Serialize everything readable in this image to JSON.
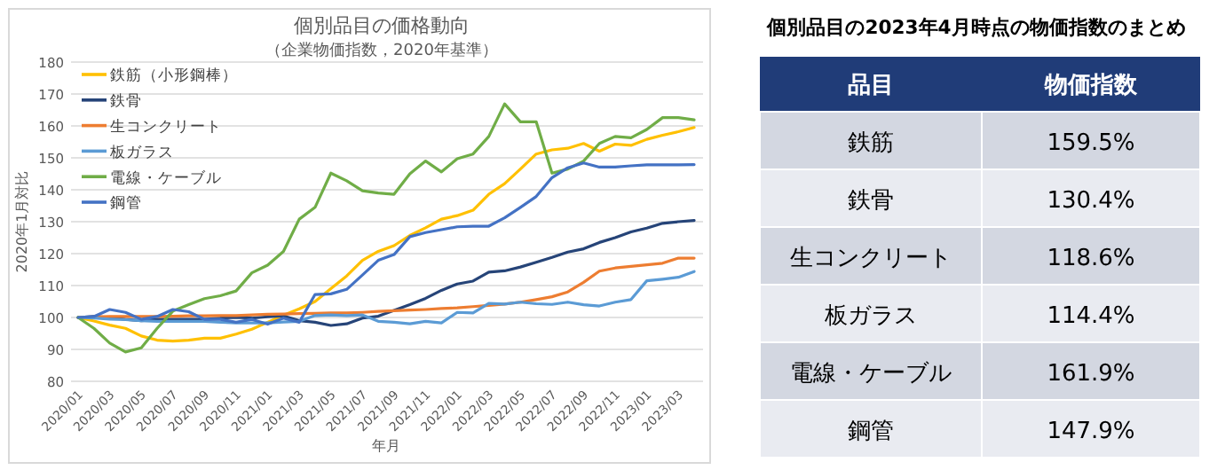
{
  "chart_data": [
    {
      "type": "line",
      "title": "個別品目の価格動向",
      "subtitle": "（企業物価指数，2020年基準）",
      "xlabel": "年月",
      "ylabel": "2020年1月対比",
      "categories": [
        "2020/01",
        null,
        "2020/03",
        null,
        "2020/05",
        null,
        "2020/07",
        null,
        "2020/09",
        null,
        "2020/11",
        null,
        "2021/01",
        null,
        "2021/03",
        null,
        "2021/05",
        null,
        "2021/07",
        null,
        "2021/09",
        null,
        "2021/11",
        null,
        "2022/01",
        null,
        "2022/03",
        null,
        "2022/05",
        null,
        "2022/07",
        null,
        "2022/09",
        null,
        "2022/11",
        null,
        "2023/01",
        null,
        "2023/03",
        null
      ],
      "ylim": [
        80,
        180
      ],
      "yticks": [
        80,
        90,
        100,
        110,
        120,
        130,
        140,
        150,
        160,
        170,
        180
      ],
      "grid": "y",
      "legend": "top left",
      "marker": "none",
      "line_style": "solid",
      "series": [
        {
          "name": "鉄筋（小形鋼棒）",
          "color": "#ffc000",
          "values": [
            100,
            98.9,
            97.6,
            96.6,
            94.2,
            92.9,
            92.6,
            92.9,
            93.5,
            93.5,
            94.8,
            96.3,
            98.5,
            100.7,
            102.7,
            105,
            109,
            113,
            117.9,
            120.7,
            122.5,
            125.7,
            128.1,
            130.8,
            131.9,
            133.6,
            138.6,
            141.9,
            146.5,
            151.2,
            152.5,
            153,
            154.5,
            152.1,
            154.3,
            153.9,
            155.8,
            157.1,
            158.2,
            159.5
          ]
        },
        {
          "name": "鉄骨",
          "color": "#264478",
          "values": [
            100,
            100.3,
            100,
            99.4,
            99,
            99.4,
            99.4,
            99.4,
            99.4,
            99.8,
            100,
            99.8,
            100.2,
            100.5,
            99,
            98.5,
            97.5,
            98,
            99.8,
            100.4,
            102.2,
            104,
            106,
            108.5,
            110.5,
            111.4,
            114.2,
            114.6,
            115.8,
            117.3,
            118.8,
            120.5,
            121.5,
            123.5,
            125,
            126.8,
            128,
            129.5,
            130,
            130.4
          ]
        },
        {
          "name": "生コンクリート",
          "color": "#ed7d31",
          "values": [
            100,
            100.2,
            100.3,
            100.3,
            100.3,
            100.3,
            100.4,
            100.5,
            100.5,
            100.6,
            100.6,
            100.8,
            101,
            101.1,
            101.2,
            101.3,
            101.4,
            101.4,
            101.6,
            101.9,
            102.1,
            102.3,
            102.5,
            102.8,
            103,
            103.4,
            103.8,
            104.2,
            104.8,
            105.6,
            106.5,
            108,
            111,
            114.5,
            115.5,
            116,
            116.5,
            117,
            118.6,
            118.6
          ]
        },
        {
          "name": "板ガラス",
          "color": "#5b9bd5",
          "values": [
            100,
            99.8,
            99.5,
            99.3,
            99,
            98.8,
            98.8,
            98.8,
            98.8,
            98.5,
            98.3,
            98.3,
            98.3,
            98.6,
            98.8,
            100.6,
            100.8,
            100.6,
            100.8,
            98.8,
            98.5,
            98,
            98.8,
            98.3,
            101.6,
            101.4,
            104.4,
            104.2,
            104.8,
            104.3,
            104.1,
            104.8,
            104,
            103.6,
            104.8,
            105.6,
            111.5,
            112,
            112.6,
            114.4
          ]
        },
        {
          "name": "電線・ケーブル",
          "color": "#70ad47",
          "values": [
            100,
            96.6,
            92,
            89.2,
            90.5,
            96.6,
            102,
            104,
            105.9,
            106.8,
            108.3,
            114,
            116.4,
            120.7,
            130.8,
            134.5,
            145.2,
            142.8,
            139.7,
            139,
            138.6,
            145,
            149,
            145.6,
            149.7,
            151.2,
            156.7,
            166.9,
            161.3,
            161.3,
            145.2,
            146.5,
            149,
            154.5,
            156.7,
            156.3,
            158.9,
            162.6,
            162.6,
            161.9
          ]
        },
        {
          "name": "鋼管",
          "color": "#4472c4",
          "values": [
            100,
            100.3,
            102.5,
            101.6,
            99.4,
            100.3,
            102.5,
            101.8,
            99.4,
            99.4,
            98.5,
            99.4,
            97.9,
            99.8,
            98.5,
            107.2,
            107.4,
            108.8,
            113.3,
            117.9,
            119.7,
            125.3,
            126.6,
            127.5,
            128.4,
            128.6,
            128.6,
            131.2,
            134.5,
            137.9,
            143.8,
            146.9,
            148.4,
            147.1,
            147.1,
            147.5,
            147.8,
            147.8,
            147.8,
            147.9
          ]
        }
      ]
    },
    {
      "type": "other",
      "title": "個別品目の2023年4月時点の物価指数のまとめ",
      "annotations": [
        "品目",
        "物価指数"
      ],
      "categories": [
        "鉄筋",
        "鉄骨",
        "生コンクリート",
        "板ガラス",
        "電線・ケーブル",
        "鋼管"
      ],
      "value_labels": [
        "159.5%",
        "130.4%",
        "118.6%",
        "114.4%",
        "161.9%",
        "147.9%"
      ]
    }
  ]
}
